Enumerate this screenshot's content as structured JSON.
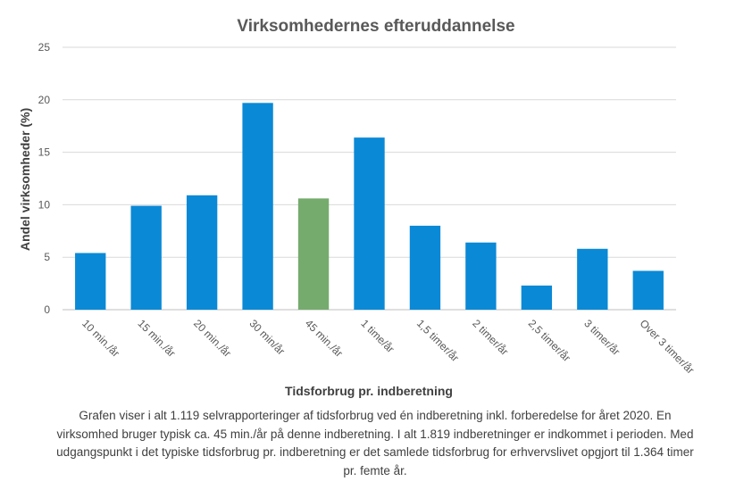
{
  "chart_data": {
    "type": "bar",
    "title": "Virksomhedernes efteruddannelse",
    "xlabel": "Tidsforbrug pr. indberetning",
    "ylabel": "Andel virksomheder (%)",
    "ylim": [
      0,
      25
    ],
    "yticks": [
      "0",
      "5",
      "10",
      "15",
      "20",
      "25"
    ],
    "grid": true,
    "categories": [
      "10 min./år",
      "15 min./år",
      "20 min./år",
      "30 min/år",
      "45 min./år",
      "1 time/år",
      "1,5 timer/år",
      "2 timer/år",
      "2,5 timer/år",
      "3 timer/år",
      "Over 3 timer/år"
    ],
    "values": [
      5.4,
      9.9,
      10.9,
      19.7,
      10.6,
      16.4,
      8.0,
      6.4,
      2.3,
      5.8,
      3.7
    ],
    "bar_colors": [
      "#0a89d6",
      "#0a89d6",
      "#0a89d6",
      "#0a89d6",
      "#76ab6e",
      "#0a89d6",
      "#0a89d6",
      "#0a89d6",
      "#0a89d6",
      "#0a89d6",
      "#0a89d6"
    ]
  },
  "caption": "Grafen viser i alt 1.119 selvrapporteringer af tidsforbrug ved én indberetning inkl. forberedelse for året 2020. En virksomhed bruger typisk ca. 45 min./år på denne indberetning. I alt 1.819 indberetninger er indkommet i perioden. Med udgangspunkt i det typiske tidsforbrug pr. indberetning er det samlede tidsforbrug for erhvervslivet opgjort til 1.364 timer pr. femte år."
}
